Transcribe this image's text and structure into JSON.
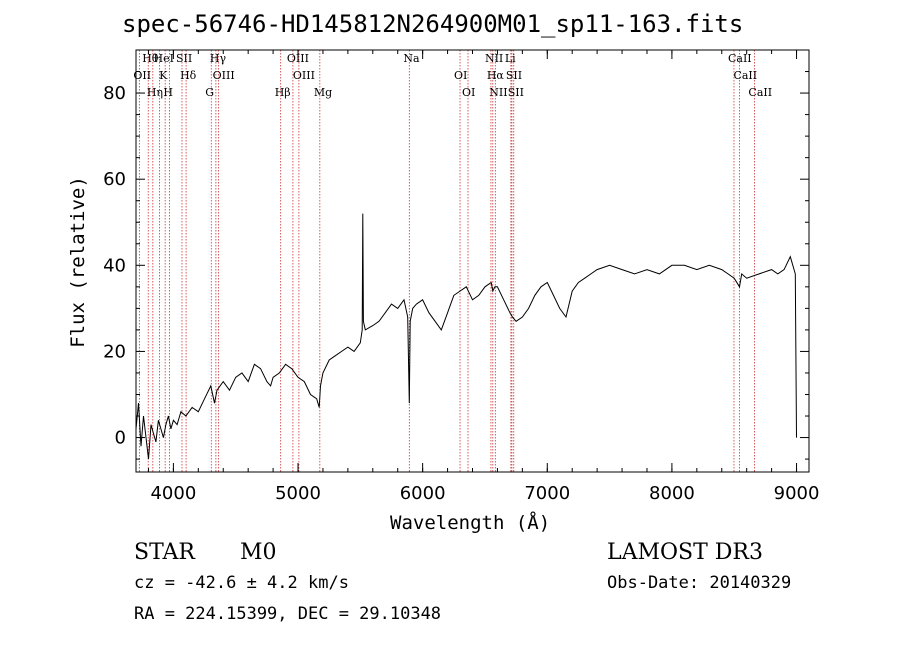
{
  "chart_data": {
    "type": "line",
    "title": "spec-56746-HD145812N264900M01_sp11-163.fits",
    "xlabel": "Wavelength (Å)",
    "ylabel": "Flux (relative)",
    "xlim": [
      3700,
      9100
    ],
    "ylim": [
      -8,
      90
    ],
    "x_ticks": [
      4000,
      5000,
      6000,
      7000,
      8000,
      9000
    ],
    "y_ticks": [
      0,
      20,
      40,
      60,
      80
    ],
    "series": [
      {
        "name": "flux",
        "x": [
          3700,
          3720,
          3740,
          3760,
          3780,
          3800,
          3820,
          3840,
          3860,
          3880,
          3900,
          3920,
          3940,
          3960,
          3980,
          4000,
          4030,
          4060,
          4100,
          4150,
          4200,
          4250,
          4300,
          4330,
          4350,
          4400,
          4450,
          4500,
          4550,
          4600,
          4650,
          4700,
          4750,
          4780,
          4800,
          4850,
          4900,
          4950,
          5000,
          5050,
          5100,
          5150,
          5170,
          5180,
          5200,
          5250,
          5300,
          5350,
          5400,
          5450,
          5500,
          5515,
          5520,
          5525,
          5540,
          5600,
          5650,
          5700,
          5750,
          5800,
          5850,
          5880,
          5893,
          5900,
          5920,
          5950,
          6000,
          6050,
          6100,
          6150,
          6200,
          6250,
          6300,
          6350,
          6400,
          6450,
          6500,
          6550,
          6563,
          6580,
          6600,
          6650,
          6700,
          6720,
          6750,
          6800,
          6850,
          6900,
          6950,
          7000,
          7050,
          7100,
          7150,
          7200,
          7250,
          7300,
          7350,
          7400,
          7500,
          7600,
          7700,
          7800,
          7900,
          8000,
          8100,
          8200,
          8300,
          8400,
          8450,
          8500,
          8542,
          8560,
          8600,
          8700,
          8800,
          8850,
          8900,
          8950,
          8990,
          9000
        ],
        "y": [
          2,
          8,
          -2,
          5,
          0,
          -5,
          3,
          1,
          -1,
          4,
          2,
          0,
          3,
          5,
          2,
          4,
          3,
          6,
          5,
          7,
          6,
          9,
          12,
          8,
          11,
          13,
          11,
          14,
          15,
          13,
          17,
          16,
          13,
          12,
          14,
          15,
          17,
          16,
          14,
          13,
          10,
          9,
          7,
          12,
          15,
          18,
          19,
          20,
          21,
          20,
          22,
          25,
          52,
          27,
          25,
          26,
          27,
          29,
          31,
          30,
          32,
          28,
          8,
          27,
          30,
          31,
          32,
          29,
          27,
          25,
          29,
          33,
          34,
          35,
          32,
          33,
          35,
          36,
          34,
          35,
          35,
          32,
          29,
          28,
          27,
          28,
          30,
          33,
          35,
          36,
          33,
          30,
          28,
          34,
          36,
          37,
          38,
          39,
          40,
          39,
          38,
          39,
          38,
          40,
          40,
          39,
          40,
          39,
          38,
          37,
          35,
          38,
          37,
          38,
          39,
          38,
          39,
          42,
          38,
          0
        ]
      }
    ],
    "lines": [
      {
        "name": "Hθ",
        "wl": 3798
      },
      {
        "name": "OII",
        "wl": 3727
      },
      {
        "name": "Hη",
        "wl": 3835
      },
      {
        "name": "HeI",
        "wl": 3889
      },
      {
        "name": "K",
        "wl": 3934
      },
      {
        "name": "H",
        "wl": 3968
      },
      {
        "name": "SII",
        "wl": 4069
      },
      {
        "name": "Hδ",
        "wl": 4102
      },
      {
        "name": "G",
        "wl": 4304
      },
      {
        "name": "Hγ",
        "wl": 4341
      },
      {
        "name": "OIII",
        "wl": 4363
      },
      {
        "name": "Hβ",
        "wl": 4861
      },
      {
        "name": "OIII",
        "wl": 4959
      },
      {
        "name": "OIII",
        "wl": 5007
      },
      {
        "name": "Mg",
        "wl": 5175
      },
      {
        "name": "Na",
        "wl": 5893
      },
      {
        "name": "OI",
        "wl": 6300
      },
      {
        "name": "OI",
        "wl": 6364
      },
      {
        "name": "NII",
        "wl": 6548
      },
      {
        "name": "Hα",
        "wl": 6563
      },
      {
        "name": "NII",
        "wl": 6583
      },
      {
        "name": "Li",
        "wl": 6708
      },
      {
        "name": "SII",
        "wl": 6716
      },
      {
        "name": "SII",
        "wl": 6731
      },
      {
        "name": "CaII",
        "wl": 8498
      },
      {
        "name": "CaII",
        "wl": 8542
      },
      {
        "name": "CaII",
        "wl": 8662
      }
    ]
  },
  "info": {
    "object_class": "STAR",
    "subclass": "M0",
    "survey": "LAMOST DR3",
    "cz": "cz = -42.6 ± 4.2 km/s",
    "obs_date": "Obs-Date: 20140329",
    "coords": "RA = 224.15399, DEC =  29.10348"
  },
  "colors": {
    "axis": "#000000",
    "line_marker": "#cc3333",
    "spectrum": "#000000"
  }
}
